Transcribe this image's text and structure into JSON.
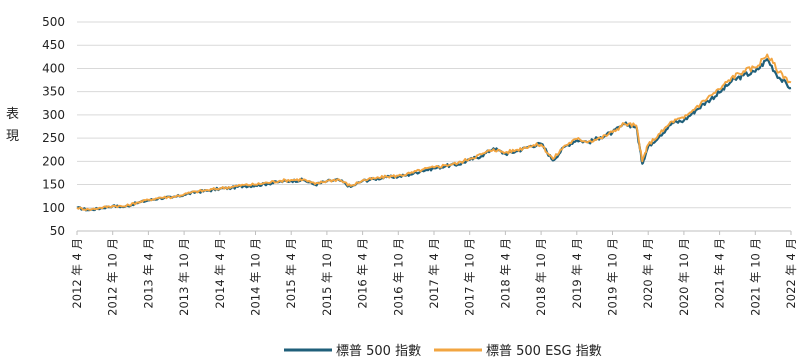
{
  "chart_data": {
    "type": "line",
    "ylabel": "表現",
    "ylim": [
      50,
      500
    ],
    "y_ticks": [
      50,
      100,
      150,
      200,
      250,
      300,
      350,
      400,
      450,
      500
    ],
    "x_tick_labels": [
      "2012 年 4 月",
      "2012 年 10 月",
      "2013 年 4 月",
      "2013 年 10 月",
      "2014 年 4 月",
      "2014 年 10 月",
      "2015 年 4 月",
      "2015 年 10 月",
      "2016 年 4 月",
      "2016 年 10 月",
      "2017 年 4 月",
      "2017 年 10 月",
      "2018 年 4 月",
      "2018 年 10 月",
      "2019 年 4 月",
      "2019 年 10 月",
      "2020 年 4 月",
      "2020 年 10 月",
      "2021 年 4 月",
      "2021 年 10 月",
      "2022 年 4 月"
    ],
    "grid": true,
    "legend_position": "bottom",
    "x": [
      "2012-04",
      "2012-06",
      "2012-08",
      "2012-10",
      "2012-12",
      "2013-02",
      "2013-04",
      "2013-06",
      "2013-08",
      "2013-10",
      "2013-12",
      "2014-02",
      "2014-04",
      "2014-06",
      "2014-08",
      "2014-10",
      "2014-12",
      "2015-02",
      "2015-04",
      "2015-06",
      "2015-08",
      "2015-10",
      "2015-12",
      "2016-02",
      "2016-04",
      "2016-06",
      "2016-08",
      "2016-10",
      "2016-12",
      "2017-02",
      "2017-04",
      "2017-06",
      "2017-08",
      "2017-10",
      "2017-12",
      "2018-02",
      "2018-04",
      "2018-06",
      "2018-08",
      "2018-10",
      "2018-12",
      "2019-02",
      "2019-04",
      "2019-06",
      "2019-08",
      "2019-10",
      "2019-12",
      "2020-02",
      "2020-03",
      "2020-04",
      "2020-06",
      "2020-08",
      "2020-10",
      "2020-12",
      "2021-02",
      "2021-04",
      "2021-06",
      "2021-08",
      "2021-10",
      "2021-12",
      "2022-02",
      "2022-04"
    ],
    "series": [
      {
        "name": "標普 500 指數",
        "color": "#1f5f7a",
        "values": [
          100,
          95,
          99,
          104,
          102,
          110,
          116,
          121,
          122,
          128,
          134,
          137,
          141,
          143,
          147,
          148,
          152,
          156,
          158,
          160,
          150,
          157,
          160,
          145,
          158,
          162,
          166,
          167,
          172,
          180,
          185,
          190,
          193,
          203,
          212,
          228,
          216,
          222,
          232,
          238,
          202,
          232,
          246,
          241,
          252,
          262,
          280,
          275,
          195,
          232,
          256,
          282,
          288,
          310,
          330,
          348,
          372,
          385,
          393,
          420,
          380,
          358
        ]
      },
      {
        "name": "標普 500 ESG 指數",
        "color": "#f2a541",
        "values": [
          100,
          96,
          100,
          104,
          103,
          111,
          117,
          122,
          123,
          129,
          135,
          138,
          142,
          145,
          149,
          150,
          154,
          158,
          160,
          161,
          151,
          158,
          161,
          147,
          159,
          163,
          167,
          169,
          174,
          182,
          187,
          192,
          196,
          206,
          215,
          226,
          219,
          225,
          233,
          236,
          205,
          234,
          248,
          243,
          250,
          263,
          281,
          277,
          200,
          236,
          260,
          286,
          293,
          316,
          337,
          355,
          380,
          394,
          402,
          430,
          392,
          370
        ]
      }
    ]
  }
}
